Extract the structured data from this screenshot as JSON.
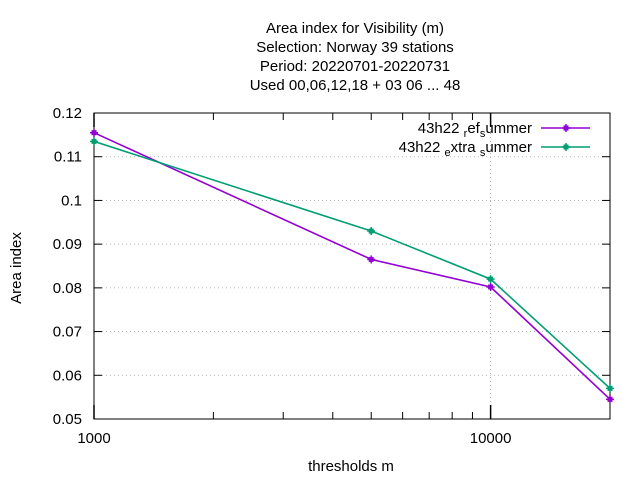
{
  "chart_data": {
    "type": "line",
    "title_lines": [
      "Area index  for Visibility (m)",
      "Selection: Norway      39 stations",
      "Period: 20220701-20220731",
      "Used  00,06,12,18  + 03 06 ... 48"
    ],
    "xlabel": "thresholds m",
    "ylabel": "Area index",
    "x_scale": "log",
    "xlim": [
      1000,
      20000
    ],
    "ylim": [
      0.05,
      0.12
    ],
    "x_ticks": [
      1000,
      10000
    ],
    "x_tick_labels": [
      "1000",
      "10000"
    ],
    "y_ticks": [
      0.05,
      0.06,
      0.07,
      0.08,
      0.09,
      0.1,
      0.11,
      0.12
    ],
    "y_tick_labels": [
      "0.05",
      "0.06",
      "0.07",
      "0.08",
      "0.09",
      "0.1",
      "0.11",
      "0.12"
    ],
    "grid": true,
    "legend_position": "top-right",
    "series": [
      {
        "legend_parts": [
          "43h22 ",
          "r",
          "ef",
          "s",
          "ummer"
        ],
        "color": "#9400d3",
        "x": [
          1000,
          5000,
          10000,
          20000
        ],
        "y": [
          0.1155,
          0.0865,
          0.0802,
          0.0545
        ]
      },
      {
        "legend_parts": [
          "43h22 ",
          "e",
          "xtra ",
          "s",
          "ummer"
        ],
        "color": "#009e73",
        "x": [
          1000,
          5000,
          10000,
          20000
        ],
        "y": [
          0.1135,
          0.093,
          0.082,
          0.057
        ]
      }
    ]
  }
}
